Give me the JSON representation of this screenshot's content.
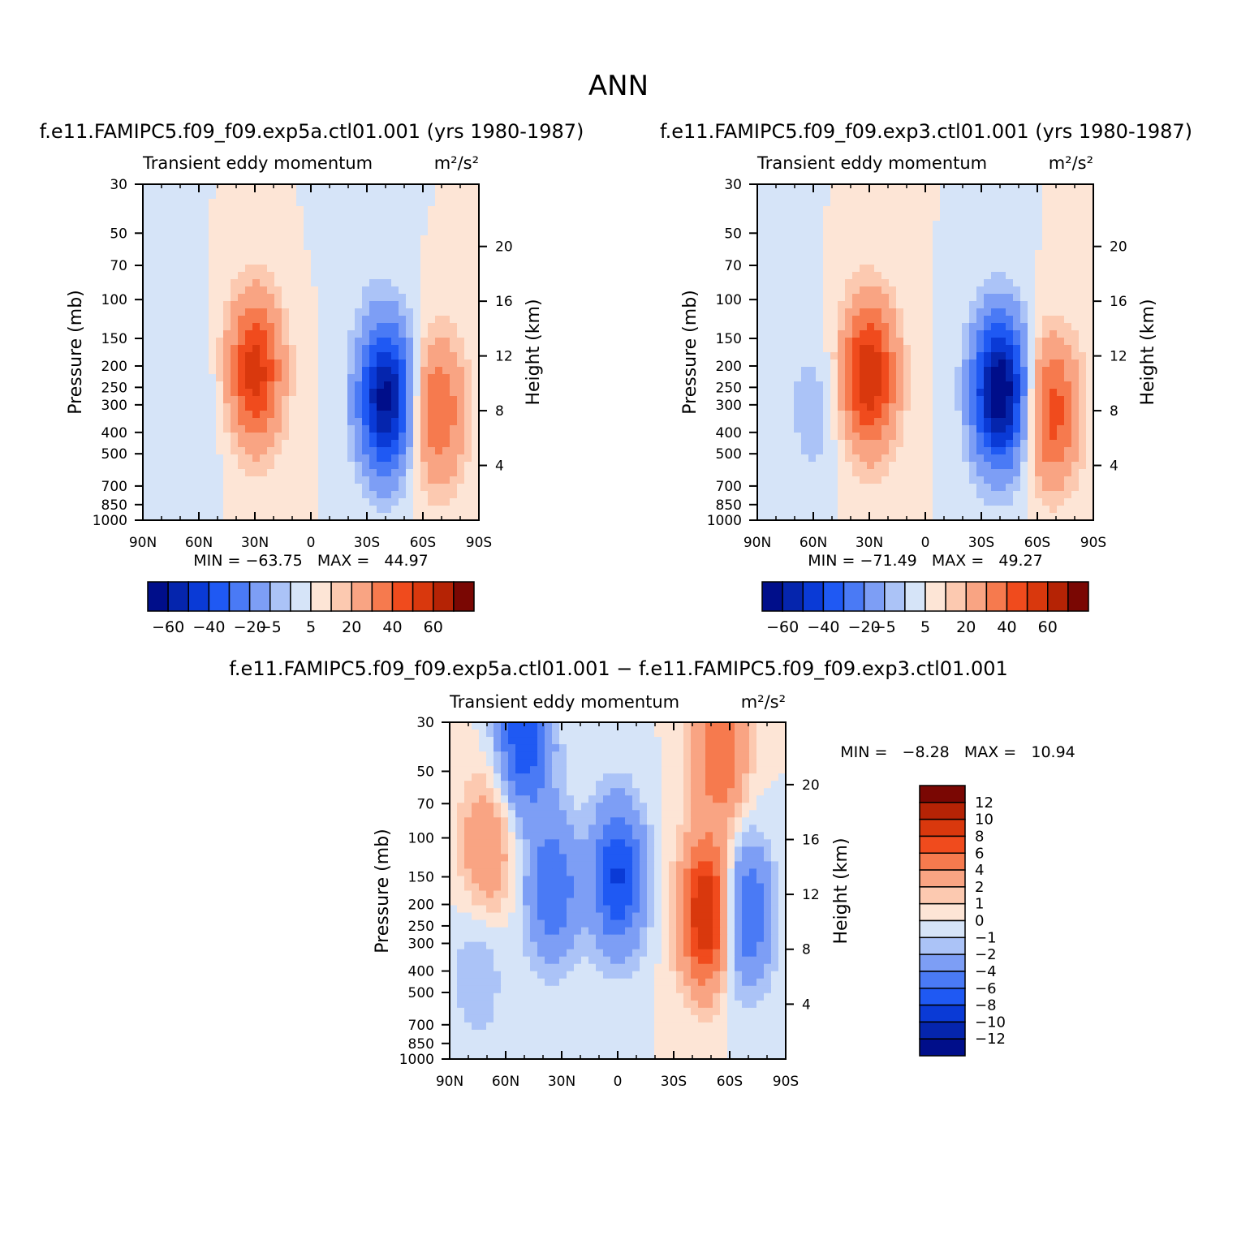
{
  "figure": {
    "title": "ANN"
  },
  "colors": {
    "main_levels": [
      "#000e8a",
      "#0525ad",
      "#0a3ad6",
      "#1f59f3",
      "#4a7af5",
      "#7d9ef5",
      "#abc3f7",
      "#d6e4f8",
      "#fde5d6",
      "#fcc9b0",
      "#f9a483",
      "#f67a4e",
      "#f04b1d",
      "#d9380d",
      "#b52305",
      "#7a0703"
    ],
    "diff_levels": [
      "#000e8a",
      "#0525ad",
      "#0a3ad6",
      "#1f59f3",
      "#4a7af5",
      "#7d9ef5",
      "#abc3f7",
      "#d6e4f8",
      "#fde5d6",
      "#fcc9b0",
      "#f9a483",
      "#f67a4e",
      "#f04b1d",
      "#d9380d",
      "#b52305",
      "#7a0703"
    ]
  },
  "chart_data": [
    {
      "id": "panel1",
      "type": "heatmap",
      "title": "f.e11.FAMIPC5.f09_f09.exp5a.ctl01.001 (yrs 1980-1987)",
      "subtitle_left": "Transient eddy momentum",
      "subtitle_right": "m²/s²",
      "ylabel": "Pressure (mb)",
      "ylabel_right": "Height (km)",
      "x_ticks": [
        "90N",
        "60N",
        "30N",
        "0",
        "30S",
        "60S",
        "90S"
      ],
      "y_ticks": [
        "30",
        "50",
        "70",
        "100",
        "150",
        "200",
        "250",
        "300",
        "400",
        "500",
        "700",
        "850",
        "1000"
      ],
      "y_ticks_right": [
        "20",
        "16",
        "12",
        "8",
        "4"
      ],
      "x_range": [
        -90,
        90
      ],
      "y_range_mb": [
        1000,
        30
      ],
      "min": "-63.75",
      "max": "44.97",
      "stats_text": "MIN = −63.75   MAX =   44.97",
      "colorbar_labels": [
        "−60",
        "−40",
        "−20",
        "−5",
        "5",
        "20",
        "40",
        "60"
      ],
      "colorbar_levels": [
        -60,
        -50,
        -40,
        -30,
        -20,
        -10,
        -5,
        0,
        5,
        10,
        20,
        30,
        40,
        50,
        60
      ],
      "features": [
        {
          "lat": -40,
          "p": 280,
          "value": -63.75
        },
        {
          "lat": 30,
          "p": 210,
          "value": 44.97
        },
        {
          "lat": -68,
          "p": 320,
          "value": 30
        },
        {
          "lat": 60,
          "p": 320,
          "value": -5
        },
        {
          "lat": 80,
          "p": 100,
          "value": -3
        },
        {
          "lat": -28,
          "p": 40,
          "value": -5
        }
      ]
    },
    {
      "id": "panel2",
      "type": "heatmap",
      "title": "f.e11.FAMIPC5.f09_f09.exp3.ctl01.001 (yrs 1980-1987)",
      "subtitle_left": "Transient eddy momentum",
      "subtitle_right": "m²/s²",
      "ylabel": "Pressure (mb)",
      "ylabel_right": "Height (km)",
      "x_ticks": [
        "90N",
        "60N",
        "30N",
        "0",
        "30S",
        "60S",
        "90S"
      ],
      "y_ticks": [
        "30",
        "50",
        "70",
        "100",
        "150",
        "200",
        "250",
        "300",
        "400",
        "500",
        "700",
        "850",
        "1000"
      ],
      "y_ticks_right": [
        "20",
        "16",
        "12",
        "8",
        "4"
      ],
      "x_range": [
        -90,
        90
      ],
      "y_range_mb": [
        1000,
        30
      ],
      "min": "-71.49",
      "max": "49.27",
      "stats_text": "MIN = −71.49   MAX =   49.27",
      "colorbar_labels": [
        "−60",
        "−40",
        "−20",
        "−5",
        "5",
        "20",
        "40",
        "60"
      ],
      "colorbar_levels": [
        -60,
        -50,
        -40,
        -30,
        -20,
        -10,
        -5,
        0,
        5,
        10,
        20,
        30,
        40,
        50,
        60
      ],
      "features": [
        {
          "lat": -40,
          "p": 260,
          "value": -71.49
        },
        {
          "lat": 30,
          "p": 220,
          "value": 49.27
        },
        {
          "lat": -68,
          "p": 320,
          "value": 35
        },
        {
          "lat": 60,
          "p": 320,
          "value": -8
        },
        {
          "lat": 80,
          "p": 100,
          "value": -3
        }
      ]
    },
    {
      "id": "panel3",
      "type": "heatmap",
      "title": "f.e11.FAMIPC5.f09_f09.exp5a.ctl01.001 − f.e11.FAMIPC5.f09_f09.exp3.ctl01.001",
      "subtitle_left": "Transient eddy momentum",
      "subtitle_right": "m²/s²",
      "ylabel": "Pressure (mb)",
      "ylabel_right": "Height (km)",
      "x_ticks": [
        "90N",
        "60N",
        "30N",
        "0",
        "30S",
        "60S",
        "90S"
      ],
      "y_ticks": [
        "30",
        "50",
        "70",
        "100",
        "150",
        "200",
        "250",
        "300",
        "400",
        "500",
        "700",
        "850",
        "1000"
      ],
      "y_ticks_right": [
        "20",
        "16",
        "12",
        "8",
        "4"
      ],
      "x_range": [
        -90,
        90
      ],
      "y_range_mb": [
        1000,
        30
      ],
      "min": "-8.28",
      "max": "10.94",
      "stats_text": "MIN =   −8.28   MAX =   10.94",
      "colorbar_labels": [
        "12",
        "10",
        "8",
        "6",
        "4",
        "2",
        "1",
        "0",
        "−1",
        "−2",
        "−4",
        "−6",
        "−8",
        "−10",
        "−12"
      ],
      "colorbar_levels": [
        -12,
        -10,
        -8,
        -6,
        -4,
        -2,
        -1,
        0,
        1,
        2,
        4,
        6,
        8,
        10,
        12
      ],
      "features": [
        {
          "lat": -48,
          "p": 220,
          "value": 10.94
        },
        {
          "lat": -55,
          "p": 40,
          "value": 6
        },
        {
          "lat": 70,
          "p": 110,
          "value": 4
        },
        {
          "lat": 35,
          "p": 170,
          "value": -6
        },
        {
          "lat": 0,
          "p": 150,
          "value": -8.28
        },
        {
          "lat": 50,
          "p": 35,
          "value": -8
        },
        {
          "lat": -68,
          "p": 220,
          "value": -7
        },
        {
          "lat": 75,
          "p": 400,
          "value": -2
        }
      ]
    }
  ]
}
